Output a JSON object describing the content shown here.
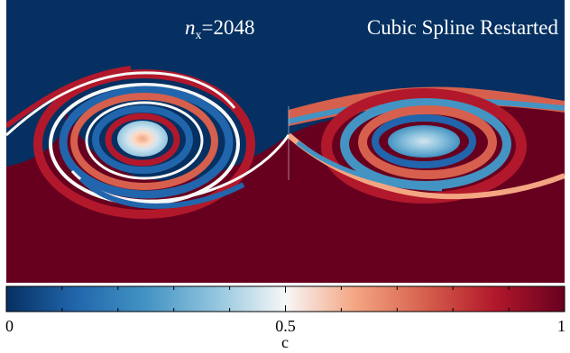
{
  "chart_data": {
    "type": "heatmap",
    "annotations": {
      "resolution_var": "n",
      "resolution_sub": "x",
      "resolution_value": "=2048",
      "method": "Cubic Spline Restarted"
    },
    "colorbar": {
      "label": "c",
      "range": [
        0,
        1
      ],
      "ticks": [
        0,
        0.5,
        1
      ],
      "tick_labels": [
        "0",
        "0.5",
        "1"
      ],
      "minor_ticks": [
        0.1,
        0.2,
        0.3,
        0.4,
        0.6,
        0.7,
        0.8,
        0.9
      ],
      "colormap": [
        "#053061",
        "#2166ac",
        "#4393c3",
        "#92c5de",
        "#f7f7f7",
        "#f4a582",
        "#d6604d",
        "#b2182b",
        "#67001f"
      ]
    },
    "fields": {
      "low_value_color": "#053061",
      "high_value_color": "#67001f",
      "interface_color": "#f7f7f7"
    }
  }
}
